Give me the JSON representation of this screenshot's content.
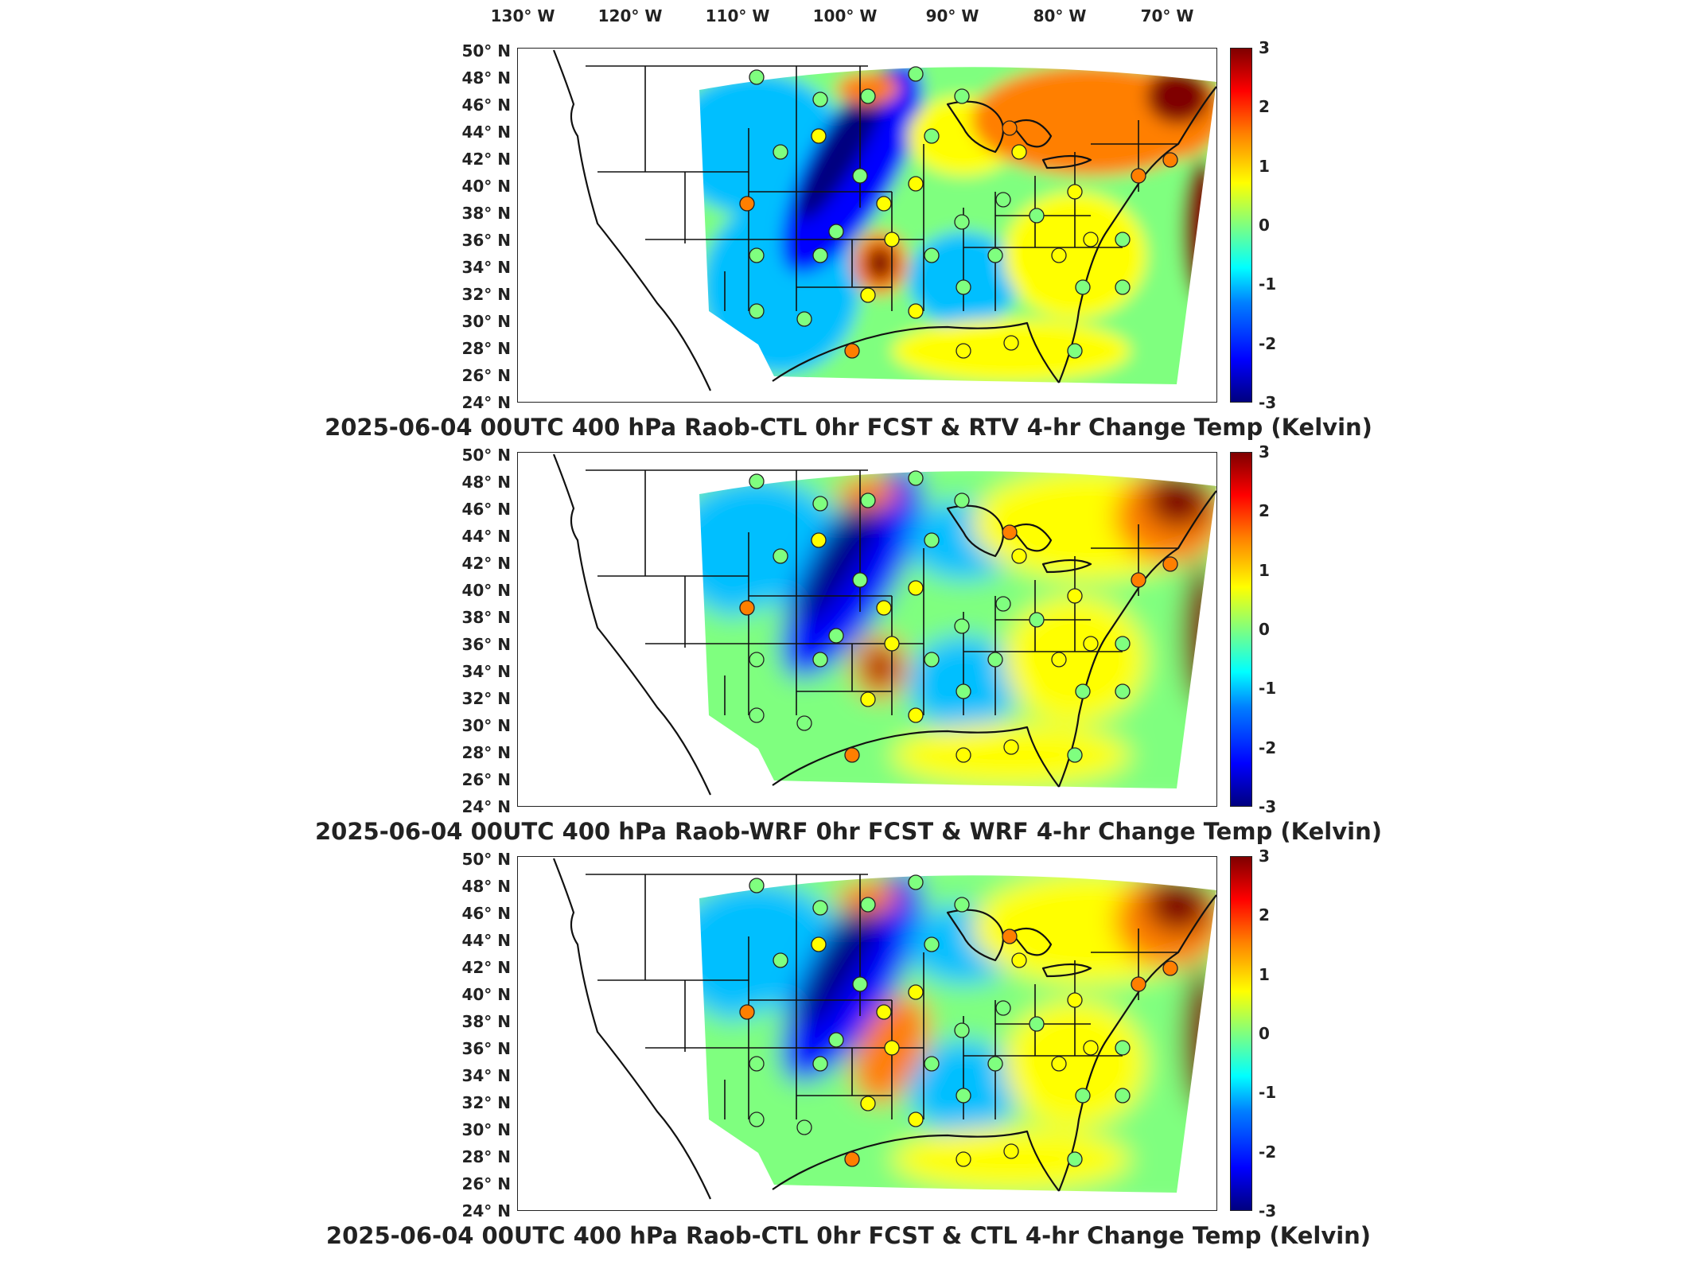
{
  "longitude_labels": [
    "130° W",
    "120° W",
    "110° W",
    "100° W",
    "90° W",
    "80° W",
    "70° W"
  ],
  "latitude_labels": [
    "50° N",
    "48° N",
    "46° N",
    "44° N",
    "42° N",
    "40° N",
    "38° N",
    "36° N",
    "34° N",
    "32° N",
    "30° N",
    "28° N",
    "26° N",
    "24° N"
  ],
  "colorbar_ticks": [
    "3",
    "2",
    "1",
    "0",
    "-1",
    "-2",
    "-3"
  ],
  "colors": {
    "cold_extreme": "#00007f",
    "cold": "#0000ff",
    "cool": "#00bfff",
    "neutral": "#7fff7f",
    "warm": "#ffff00",
    "hot": "#ff7f00",
    "hot_extreme": "#7f0000",
    "boundaries": "#111111"
  },
  "panels": [
    {
      "title": "2025-06-04 00UTC 400 hPa Raob-CTL 0hr FCST & RTV 4-hr Change Temp (Kelvin)"
    },
    {
      "title": "2025-06-04 00UTC 400 hPa Raob-WRF 0hr FCST & WRF 4-hr Change Temp (Kelvin)"
    },
    {
      "title": "2025-06-04 00UTC 400 hPa Raob-CTL 0hr FCST & CTL 4-hr Change Temp (Kelvin)"
    }
  ]
}
